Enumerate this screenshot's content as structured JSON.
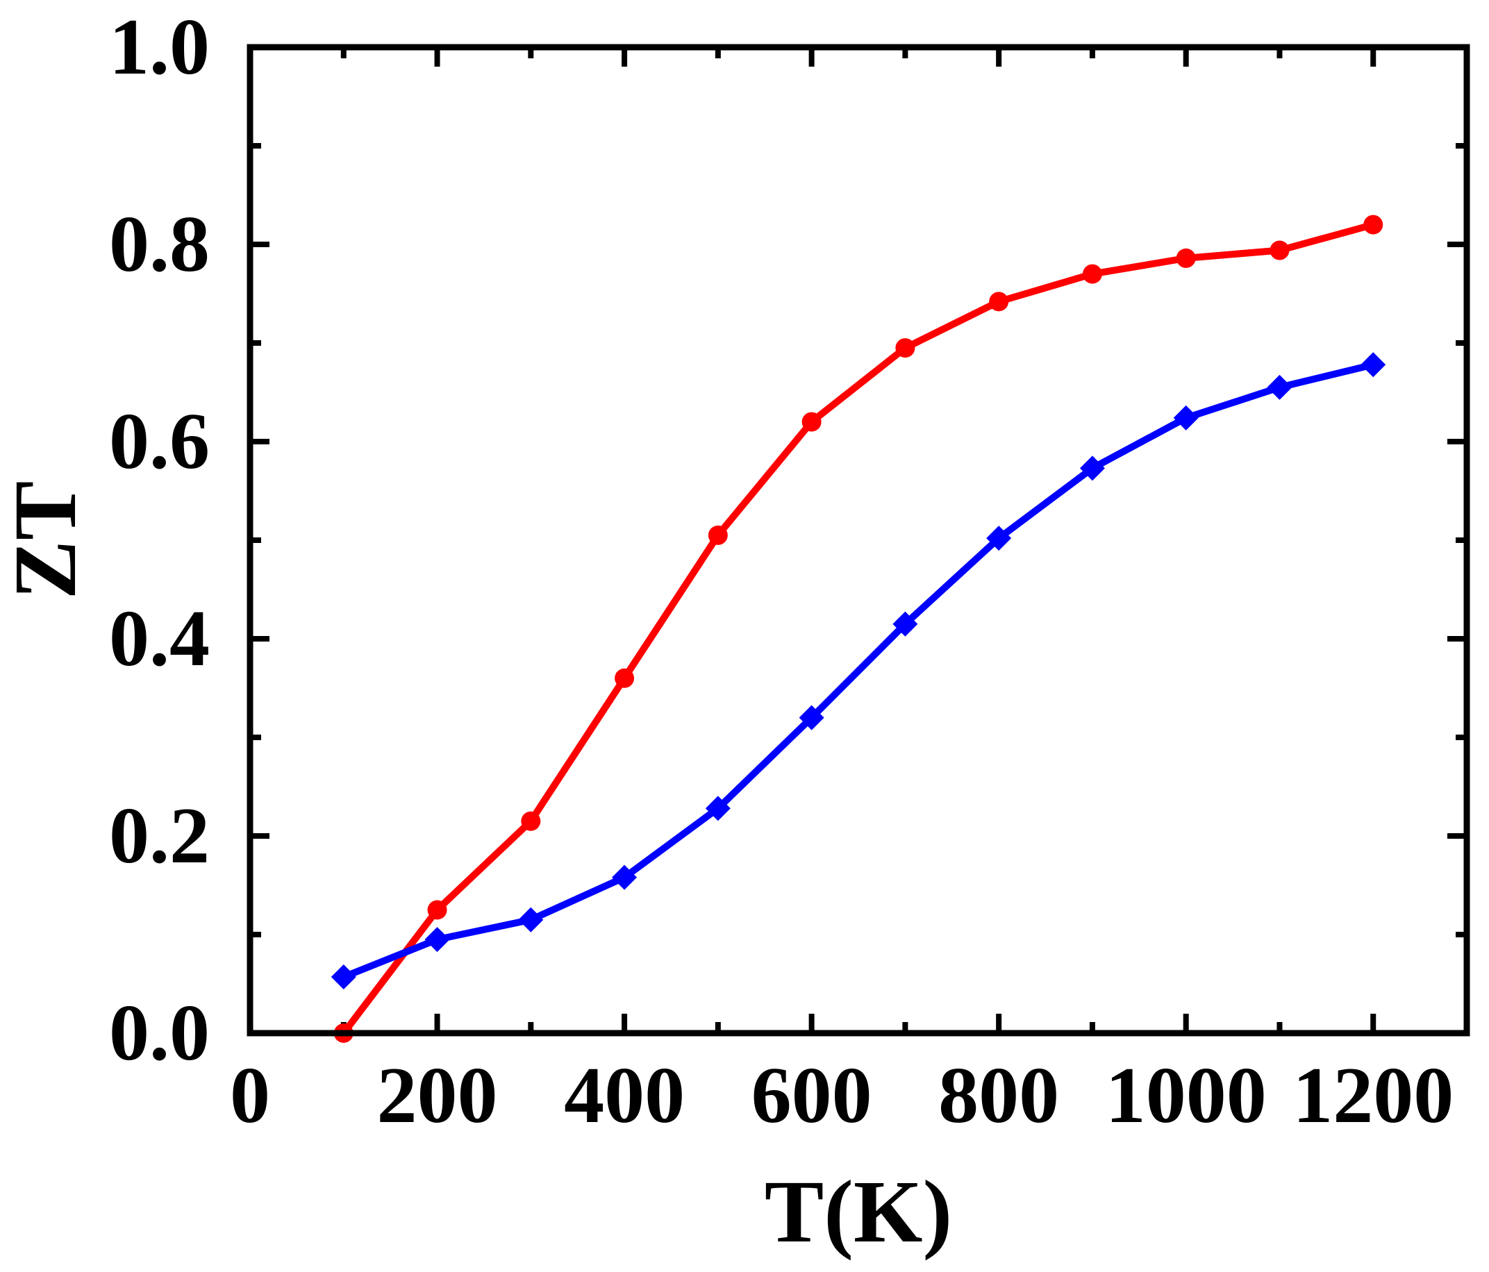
{
  "chart_data": {
    "type": "line",
    "title": "",
    "xlabel": "T(K)",
    "ylabel": "ZT",
    "xlim": [
      0,
      1300
    ],
    "ylim": [
      0,
      1.0
    ],
    "x_ticks": [
      0,
      200,
      400,
      600,
      800,
      1000,
      1200
    ],
    "x_tick_labels": [
      "0",
      "200",
      "400",
      "600",
      "800",
      "1000",
      "1200"
    ],
    "x_minor_ticks": [
      100,
      300,
      500,
      700,
      900,
      1100
    ],
    "y_ticks": [
      0,
      0.2,
      0.4,
      0.6,
      0.8,
      1.0
    ],
    "y_tick_labels": [
      "0.0",
      "0.2",
      "0.4",
      "0.6",
      "0.8",
      "1.0"
    ],
    "y_minor_ticks": [
      0.1,
      0.3,
      0.5,
      0.7,
      0.9
    ],
    "grid": false,
    "legend": "none",
    "series": [
      {
        "name": "red series",
        "color": "#ff0000",
        "marker": "circle",
        "x": [
          100,
          200,
          300,
          400,
          500,
          600,
          700,
          800,
          900,
          1000,
          1100,
          1200
        ],
        "values": [
          0.0,
          0.125,
          0.215,
          0.36,
          0.505,
          0.62,
          0.695,
          0.742,
          0.77,
          0.786,
          0.794,
          0.82
        ]
      },
      {
        "name": "blue series",
        "color": "#0000ff",
        "marker": "diamond",
        "x": [
          100,
          200,
          300,
          400,
          500,
          600,
          700,
          800,
          900,
          1000,
          1100,
          1200
        ],
        "values": [
          0.057,
          0.095,
          0.115,
          0.158,
          0.228,
          0.32,
          0.415,
          0.502,
          0.573,
          0.624,
          0.655,
          0.678
        ]
      }
    ]
  }
}
